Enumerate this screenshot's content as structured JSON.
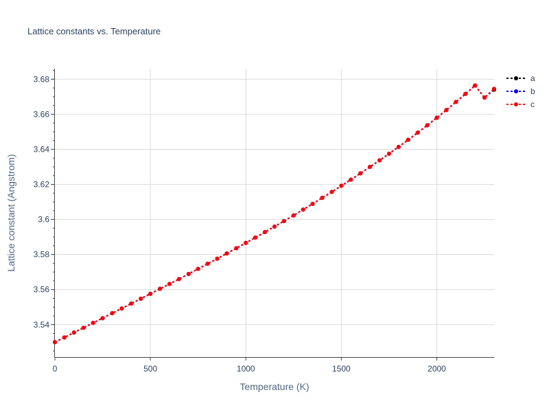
{
  "chart_data": {
    "type": "line",
    "title": "Lattice constants vs. Temperature",
    "xlabel": "Temperature (K)",
    "ylabel": "Lattice constant (Angstrom)",
    "xlim": [
      0,
      2300
    ],
    "ylim": [
      3.5215,
      3.686
    ],
    "x_ticks": [
      0,
      500,
      1000,
      1500,
      2000
    ],
    "x_tick_labels": [
      "0",
      "500",
      "1000",
      "1500",
      "2000"
    ],
    "y_ticks": [
      3.54,
      3.56,
      3.58,
      3.6,
      3.62,
      3.64,
      3.66,
      3.68
    ],
    "y_tick_labels": [
      "3.54",
      "3.56",
      "3.58",
      "3.6",
      "3.62",
      "3.64",
      "3.66",
      "3.68"
    ],
    "grid": true,
    "legend_position": "top-right",
    "x": [
      0,
      50,
      100,
      150,
      200,
      250,
      300,
      350,
      400,
      450,
      500,
      550,
      600,
      650,
      700,
      750,
      800,
      850,
      900,
      950,
      1000,
      1050,
      1100,
      1150,
      1200,
      1250,
      1300,
      1350,
      1400,
      1450,
      1500,
      1550,
      1600,
      1650,
      1700,
      1750,
      1800,
      1850,
      1900,
      1950,
      2000,
      2050,
      2100,
      2150,
      2200,
      2250,
      2300
    ],
    "series": [
      {
        "name": "a",
        "color": "#000000",
        "values": [
          3.53,
          3.5327,
          3.5355,
          3.5382,
          3.541,
          3.5437,
          3.5465,
          3.5492,
          3.552,
          3.5548,
          3.5576,
          3.5604,
          3.5632,
          3.566,
          3.5689,
          3.5718,
          3.5747,
          3.5776,
          3.5806,
          3.5836,
          3.5866,
          3.5897,
          3.5928,
          3.5959,
          3.5991,
          3.6023,
          3.6056,
          3.6089,
          3.6123,
          3.6157,
          3.6192,
          3.6227,
          3.6263,
          3.63,
          3.6337,
          3.6375,
          3.6414,
          3.6454,
          3.6495,
          3.6537,
          3.658,
          3.6624,
          3.667,
          3.6716,
          3.6764,
          3.6695,
          3.674
        ]
      },
      {
        "name": "b",
        "color": "#0000ff",
        "values": [
          3.53,
          3.5327,
          3.5355,
          3.5382,
          3.541,
          3.5437,
          3.5465,
          3.5492,
          3.552,
          3.5548,
          3.5576,
          3.5604,
          3.5632,
          3.566,
          3.5689,
          3.5718,
          3.5747,
          3.5776,
          3.5806,
          3.5836,
          3.5866,
          3.5897,
          3.5928,
          3.5959,
          3.5991,
          3.6023,
          3.6056,
          3.6089,
          3.6123,
          3.6157,
          3.6192,
          3.6227,
          3.6263,
          3.63,
          3.6337,
          3.6375,
          3.6414,
          3.6454,
          3.6495,
          3.6537,
          3.658,
          3.6624,
          3.667,
          3.6716,
          3.6764,
          3.6695,
          3.6745
        ]
      },
      {
        "name": "c",
        "color": "#ff0000",
        "values": [
          3.53,
          3.5327,
          3.5355,
          3.5382,
          3.541,
          3.5437,
          3.5465,
          3.5492,
          3.552,
          3.5548,
          3.5576,
          3.5604,
          3.5632,
          3.566,
          3.5689,
          3.5718,
          3.5747,
          3.5776,
          3.5806,
          3.5836,
          3.5866,
          3.5897,
          3.5928,
          3.5959,
          3.5991,
          3.6023,
          3.6056,
          3.6089,
          3.6123,
          3.6157,
          3.6192,
          3.6227,
          3.6263,
          3.63,
          3.6337,
          3.6375,
          3.6414,
          3.6454,
          3.6495,
          3.6537,
          3.658,
          3.6624,
          3.667,
          3.6716,
          3.6764,
          3.6695,
          3.6745
        ]
      }
    ]
  }
}
